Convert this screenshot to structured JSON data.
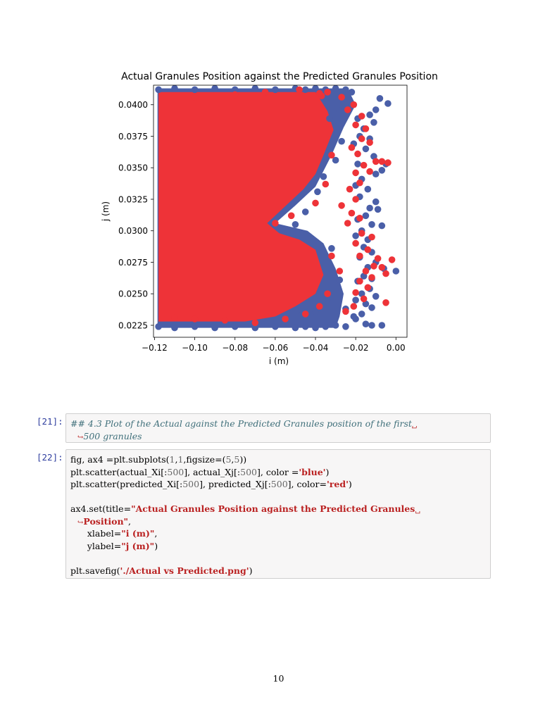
{
  "chart_data": {
    "type": "scatter",
    "title": "Actual Granules Position against the Predicted Granules Position",
    "xlabel": "i (m)",
    "ylabel": "j (m)",
    "xlim": [
      -0.1205,
      0.0055
    ],
    "ylim": [
      0.02155,
      0.04155
    ],
    "xticks": [
      -0.12,
      -0.1,
      -0.08,
      -0.06,
      -0.04,
      -0.02,
      0.0
    ],
    "xtick_labels": [
      "−0.12",
      "−0.10",
      "−0.08",
      "−0.06",
      "−0.04",
      "−0.02",
      "0.00"
    ],
    "yticks": [
      0.0225,
      0.025,
      0.0275,
      0.03,
      0.0325,
      0.035,
      0.0375,
      0.04
    ],
    "ytick_labels": [
      "0.0225",
      "0.0250",
      "0.0275",
      "0.0300",
      "0.0325",
      "0.0350",
      "0.0375",
      "0.0400"
    ],
    "grid": false,
    "colors": {
      "actual": "#4a5fa8",
      "predicted": "#ee3338"
    },
    "series": [
      {
        "color": "#4a5fa8",
        "points": [
          [
            -0.118,
            0.0412
          ],
          [
            -0.11,
            0.0413
          ],
          [
            -0.1,
            0.0412
          ],
          [
            -0.09,
            0.0413
          ],
          [
            -0.08,
            0.0412
          ],
          [
            -0.07,
            0.0413
          ],
          [
            -0.06,
            0.0412
          ],
          [
            -0.05,
            0.0413
          ],
          [
            -0.045,
            0.0412
          ],
          [
            -0.04,
            0.0413
          ],
          [
            -0.035,
            0.0412
          ],
          [
            -0.03,
            0.0413
          ],
          [
            -0.025,
            0.0412
          ],
          [
            -0.022,
            0.041
          ],
          [
            -0.118,
            0.0224
          ],
          [
            -0.11,
            0.0223
          ],
          [
            -0.1,
            0.0224
          ],
          [
            -0.09,
            0.0223
          ],
          [
            -0.08,
            0.0224
          ],
          [
            -0.07,
            0.0223
          ],
          [
            -0.06,
            0.0224
          ],
          [
            -0.05,
            0.0223
          ],
          [
            -0.045,
            0.0224
          ],
          [
            -0.04,
            0.0223
          ],
          [
            -0.035,
            0.0224
          ],
          [
            -0.03,
            0.0225
          ],
          [
            -0.025,
            0.0224
          ],
          [
            -0.004,
            0.0401
          ],
          [
            -0.008,
            0.0405
          ],
          [
            -0.01,
            0.0396
          ],
          [
            -0.013,
            0.0392
          ],
          [
            -0.011,
            0.0386
          ],
          [
            -0.016,
            0.0381
          ],
          [
            -0.019,
            0.0389
          ],
          [
            -0.018,
            0.0375
          ],
          [
            -0.021,
            0.0369
          ],
          [
            -0.013,
            0.0373
          ],
          [
            -0.015,
            0.0365
          ],
          [
            -0.011,
            0.0359
          ],
          [
            -0.019,
            0.0353
          ],
          [
            -0.005,
            0.0353
          ],
          [
            -0.007,
            0.0348
          ],
          [
            -0.01,
            0.0345
          ],
          [
            -0.017,
            0.0341
          ],
          [
            -0.02,
            0.0336
          ],
          [
            -0.014,
            0.0333
          ],
          [
            -0.018,
            0.0327
          ],
          [
            -0.01,
            0.0323
          ],
          [
            -0.013,
            0.0318
          ],
          [
            -0.009,
            0.0317
          ],
          [
            -0.015,
            0.0312
          ],
          [
            -0.019,
            0.0309
          ],
          [
            -0.012,
            0.0305
          ],
          [
            -0.007,
            0.0304
          ],
          [
            -0.017,
            0.03
          ],
          [
            -0.02,
            0.0296
          ],
          [
            -0.014,
            0.0293
          ],
          [
            -0.016,
            0.0287
          ],
          [
            -0.012,
            0.0283
          ],
          [
            -0.018,
            0.0279
          ],
          [
            -0.01,
            0.0275
          ],
          [
            -0.014,
            0.0271
          ],
          [
            -0.006,
            0.027
          ],
          [
            0.0,
            0.0268
          ],
          [
            -0.016,
            0.0264
          ],
          [
            -0.012,
            0.0262
          ],
          [
            -0.019,
            0.026
          ],
          [
            -0.013,
            0.0254
          ],
          [
            -0.017,
            0.025
          ],
          [
            -0.01,
            0.0248
          ],
          [
            -0.02,
            0.0245
          ],
          [
            -0.015,
            0.0242
          ],
          [
            -0.012,
            0.0239
          ],
          [
            -0.017,
            0.0234
          ],
          [
            -0.02,
            0.023
          ],
          [
            -0.015,
            0.0226
          ],
          [
            -0.012,
            0.0225
          ],
          [
            -0.007,
            0.0225
          ],
          [
            -0.021,
            0.0232
          ],
          [
            -0.028,
            0.0395
          ],
          [
            -0.033,
            0.0389
          ],
          [
            -0.027,
            0.0371
          ],
          [
            -0.03,
            0.0356
          ],
          [
            -0.036,
            0.0343
          ],
          [
            -0.039,
            0.0331
          ],
          [
            -0.045,
            0.0315
          ],
          [
            -0.05,
            0.0305
          ],
          [
            -0.055,
            0.0301
          ],
          [
            -0.032,
            0.0286
          ],
          [
            -0.028,
            0.0261
          ],
          [
            -0.034,
            0.0246
          ],
          [
            -0.04,
            0.0236
          ],
          [
            -0.047,
            0.0233
          ],
          [
            -0.025,
            0.0238
          ]
        ]
      },
      {
        "color": "#ee3338",
        "points": [
          [
            -0.034,
            0.041
          ],
          [
            -0.037,
            0.0407
          ],
          [
            -0.027,
            0.0406
          ],
          [
            -0.021,
            0.04
          ],
          [
            -0.024,
            0.0396
          ],
          [
            -0.017,
            0.0391
          ],
          [
            -0.02,
            0.0384
          ],
          [
            -0.015,
            0.0381
          ],
          [
            -0.017,
            0.0373
          ],
          [
            -0.013,
            0.037
          ],
          [
            -0.022,
            0.0366
          ],
          [
            -0.019,
            0.0361
          ],
          [
            -0.01,
            0.0355
          ],
          [
            -0.007,
            0.0355
          ],
          [
            -0.004,
            0.0354
          ],
          [
            -0.016,
            0.0352
          ],
          [
            -0.02,
            0.0346
          ],
          [
            -0.013,
            0.0347
          ],
          [
            -0.018,
            0.0338
          ],
          [
            -0.023,
            0.0333
          ],
          [
            -0.02,
            0.0325
          ],
          [
            -0.027,
            0.032
          ],
          [
            -0.022,
            0.0314
          ],
          [
            -0.018,
            0.031
          ],
          [
            -0.024,
            0.0306
          ],
          [
            -0.017,
            0.0298
          ],
          [
            -0.012,
            0.0295
          ],
          [
            -0.02,
            0.029
          ],
          [
            -0.014,
            0.0285
          ],
          [
            -0.018,
            0.028
          ],
          [
            -0.009,
            0.0278
          ],
          [
            -0.002,
            0.0277
          ],
          [
            -0.011,
            0.0272
          ],
          [
            -0.007,
            0.0271
          ],
          [
            -0.015,
            0.0268
          ],
          [
            -0.005,
            0.0266
          ],
          [
            -0.012,
            0.0263
          ],
          [
            -0.018,
            0.026
          ],
          [
            -0.014,
            0.0255
          ],
          [
            -0.02,
            0.0251
          ],
          [
            -0.016,
            0.0246
          ],
          [
            -0.005,
            0.0243
          ],
          [
            -0.021,
            0.024
          ],
          [
            -0.025,
            0.0236
          ],
          [
            -0.048,
            0.0412
          ],
          [
            -0.038,
            0.0409
          ],
          [
            -0.044,
            0.0407
          ],
          [
            -0.032,
            0.036
          ],
          [
            -0.035,
            0.0337
          ],
          [
            -0.04,
            0.0322
          ],
          [
            -0.052,
            0.0312
          ],
          [
            -0.06,
            0.0306
          ],
          [
            -0.032,
            0.028
          ],
          [
            -0.028,
            0.0268
          ],
          [
            -0.034,
            0.025
          ],
          [
            -0.038,
            0.024
          ],
          [
            -0.045,
            0.0234
          ],
          [
            -0.055,
            0.023
          ],
          [
            -0.07,
            0.0227
          ],
          [
            -0.085,
            0.0229
          ],
          [
            -0.1,
            0.023
          ],
          [
            -0.11,
            0.0231
          ],
          [
            -0.1,
            0.0406
          ],
          [
            -0.08,
            0.0408
          ],
          [
            -0.065,
            0.041
          ]
        ]
      }
    ]
  },
  "cells": [
    {
      "prompt": "[21]:",
      "type": "markdown",
      "lines": [
        "## 4.3 Plot of the Actual against the Predicted Granules position of the first",
        "500 granules"
      ],
      "wrap_mark": "␣",
      "cont_mark": "↪"
    },
    {
      "prompt": "[22]:",
      "type": "code",
      "lines": [
        [
          [
            "p",
            "fig, ax4 =plt.subplots("
          ],
          [
            "n",
            "1"
          ],
          [
            "p",
            ","
          ],
          [
            "n",
            "1"
          ],
          [
            "p",
            ",figsize=("
          ],
          [
            "n",
            "5"
          ],
          [
            "p",
            ","
          ],
          [
            "n",
            "5"
          ],
          [
            "p",
            "))"
          ]
        ],
        [
          [
            "p",
            "plt.scatter(actual_Xi[:"
          ],
          [
            "n",
            "500"
          ],
          [
            "p",
            "], actual_Xj[:"
          ],
          [
            "n",
            "500"
          ],
          [
            "p",
            "], color ="
          ],
          [
            "s",
            "'blue'"
          ],
          [
            "p",
            ")"
          ]
        ],
        [
          [
            "p",
            "plt.scatter(predicted_Xi[:"
          ],
          [
            "n",
            "500"
          ],
          [
            "p",
            "], predicted_Xj[:"
          ],
          [
            "n",
            "500"
          ],
          [
            "p",
            "], color="
          ],
          [
            "s",
            "'red'"
          ],
          [
            "p",
            ")"
          ]
        ],
        [],
        [
          [
            "p",
            "ax4.set(title="
          ],
          [
            "s",
            "\"Actual Granules Position against the Predicted Granules"
          ],
          [
            "w",
            "␣"
          ]
        ],
        [
          [
            "c",
            "↪"
          ],
          [
            "s",
            "Position\""
          ],
          [
            "p",
            ","
          ]
        ],
        [
          [
            "p",
            "      xlabel="
          ],
          [
            "s",
            "\"i (m)\""
          ],
          [
            "p",
            ","
          ]
        ],
        [
          [
            "p",
            "      ylabel="
          ],
          [
            "s",
            "\"j (m)\""
          ],
          [
            "p",
            ")"
          ]
        ],
        [],
        [
          [
            "p",
            "plt.savefig("
          ],
          [
            "s",
            "'./Actual vs Predicted.png'"
          ],
          [
            "p",
            ")"
          ]
        ]
      ]
    }
  ],
  "page_number": "10"
}
